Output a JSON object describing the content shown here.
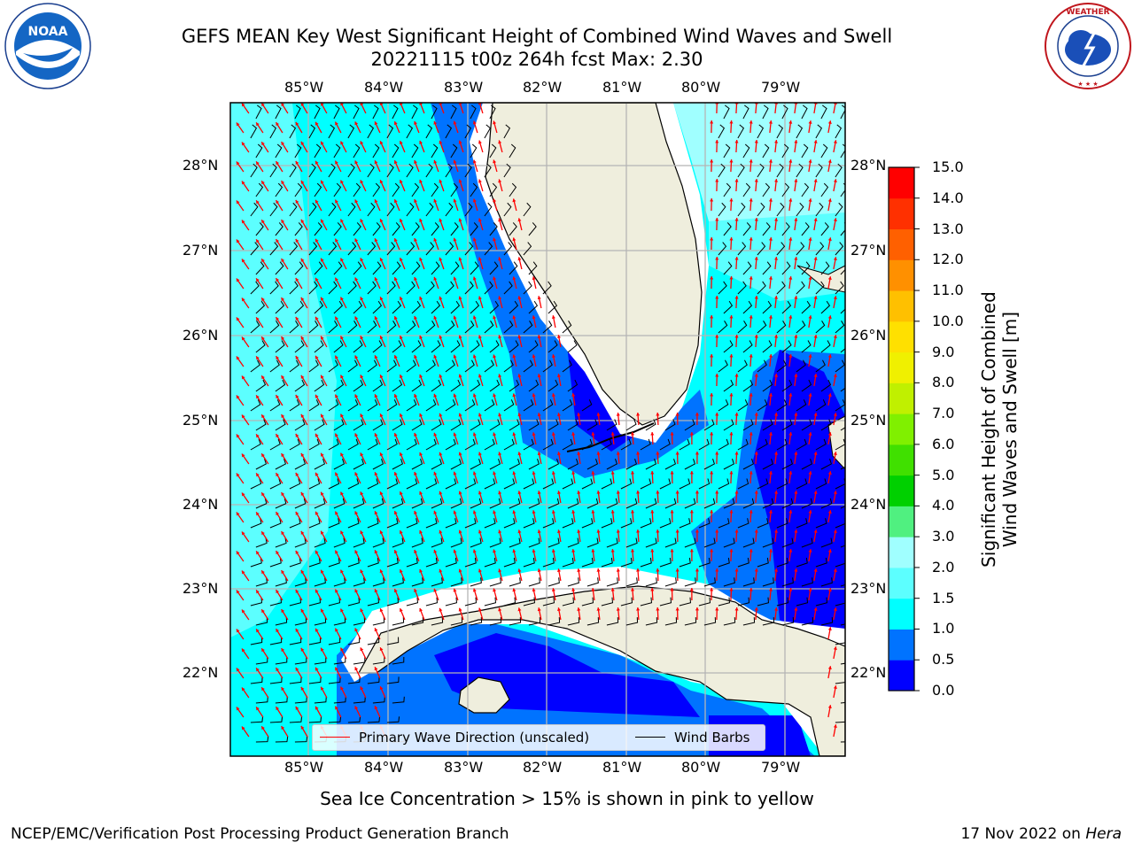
{
  "header": {
    "title_line1": "GEFS MEAN Key West Significant Height of Combined Wind Waves and Swell",
    "title_line2": "20221115 t00z 264h fcst   Max: 2.30"
  },
  "logos": {
    "left": "NOAA logo",
    "right": "National Weather Service logo"
  },
  "map": {
    "longitude_labels": [
      "85°W",
      "84°W",
      "83°W",
      "82°W",
      "81°W",
      "80°W",
      "79°W"
    ],
    "latitude_labels": [
      "28°N",
      "27°N",
      "26°N",
      "25°N",
      "24°N",
      "23°N",
      "22°N"
    ],
    "features": [
      "Florida peninsula",
      "Florida Keys",
      "Cuba",
      "Isla de la Juventud",
      "Bahamas"
    ]
  },
  "legend": {
    "wave_direction": "Primary Wave Direction (unscaled)",
    "wind_barbs": "Wind Barbs",
    "wave_color": "#ff0000",
    "barb_color": "#000000"
  },
  "colorbar": {
    "label_line1": "Significant Height of Combined",
    "label_line2": "Wind Waves and Swell [m]",
    "ticks": [
      "0.0",
      "0.5",
      "1.0",
      "1.5",
      "2.0",
      "3.0",
      "4.0",
      "5.0",
      "6.0",
      "7.0",
      "8.0",
      "9.0",
      "10.0",
      "11.0",
      "12.0",
      "13.0",
      "14.0",
      "15.0"
    ],
    "colors": [
      "#0000ff",
      "#0073ff",
      "#00ffff",
      "#5cffff",
      "#a0ffff",
      "#50f080",
      "#00d000",
      "#40e000",
      "#80f000",
      "#c0f000",
      "#f0f000",
      "#ffe000",
      "#ffc000",
      "#ff9000",
      "#ff6000",
      "#ff3000",
      "#ff0000"
    ]
  },
  "note": "Sea Ice Concentration > 15% is shown in pink to yellow",
  "footer": {
    "left": "NCEP/EMC/Verification Post Processing Product Generation Branch",
    "right_prefix": "17 Nov 2022 on ",
    "right_machine": "Hera"
  }
}
